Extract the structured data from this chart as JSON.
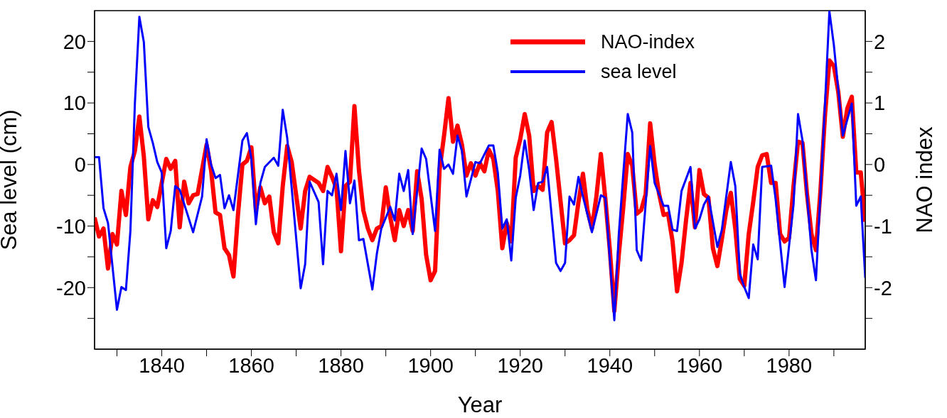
{
  "chart_data": {
    "type": "line",
    "xlabel": "Year",
    "ylabel": "Sea level (cm)",
    "y2label": "NAO index",
    "xlim": [
      1825,
      1997
    ],
    "xticks": [
      {
        "value": 1830,
        "label": null
      },
      1840,
      {
        "value": 1850,
        "label": null
      },
      1860,
      {
        "value": 1870,
        "label": null
      },
      1880,
      {
        "value": 1890,
        "label": null
      },
      1900,
      {
        "value": 1910,
        "label": null
      },
      1920,
      {
        "value": 1930,
        "label": null
      },
      1940,
      {
        "value": 1950,
        "label": null
      },
      1960,
      {
        "value": 1970,
        "label": null
      },
      1980,
      {
        "value": 1990,
        "label": null
      }
    ],
    "ylim": [
      -30,
      25
    ],
    "yticks": [
      {
        "value": -25,
        "label": null
      },
      -20,
      {
        "value": -15,
        "label": null
      },
      -10,
      {
        "value": -5,
        "label": null
      },
      0,
      {
        "value": 5,
        "label": null
      },
      10,
      {
        "value": 15,
        "label": null
      },
      20
    ],
    "y2lim": [
      -3,
      2.5
    ],
    "y2ticks": [
      {
        "value": -2.5,
        "label": null
      },
      -2,
      {
        "value": -1.5,
        "label": null
      },
      -1,
      {
        "value": -0.5,
        "label": null
      },
      0,
      {
        "value": 0.5,
        "label": null
      },
      1,
      {
        "value": 1.5,
        "label": null
      },
      2
    ],
    "grid": false,
    "legend": "top right",
    "marker": "none",
    "line_style": "solid",
    "series": [
      {
        "name": "NAO-index",
        "color": "#ff0000",
        "axis": "y2",
        "x": [
          1825,
          1826,
          1827,
          1828,
          1829,
          1830,
          1831,
          1832,
          1833,
          1834,
          1835,
          1836,
          1837,
          1838,
          1839,
          1841,
          1842,
          1843,
          1844,
          1845,
          1846,
          1847,
          1848,
          1850,
          1851,
          1852,
          1853,
          1854,
          1855,
          1856,
          1857,
          1858,
          1859,
          1860,
          1861,
          1862,
          1863,
          1864,
          1865,
          1866,
          1867,
          1868,
          1869,
          1871,
          1872,
          1873,
          1875,
          1876,
          1877,
          1878,
          1879,
          1880,
          1881,
          1882,
          1883,
          1884,
          1885,
          1886,
          1887,
          1888,
          1889,
          1890,
          1891,
          1892,
          1893,
          1894,
          1895,
          1896,
          1897,
          1898,
          1899,
          1900,
          1901,
          1902,
          1903,
          1904,
          1905,
          1906,
          1907,
          1908,
          1909,
          1910,
          1911,
          1912,
          1913,
          1914,
          1915,
          1916,
          1917,
          1918,
          1919,
          1920,
          1921,
          1922,
          1923,
          1924,
          1925,
          1926,
          1927,
          1928,
          1930,
          1931,
          1932,
          1933,
          1934,
          1935,
          1936,
          1937,
          1938,
          1939,
          1940,
          1941,
          1942,
          1943,
          1944,
          1945,
          1946,
          1947,
          1948,
          1949,
          1950,
          1951,
          1952,
          1953,
          1954,
          1955,
          1956,
          1957,
          1958,
          1959,
          1960,
          1961,
          1962,
          1963,
          1964,
          1965,
          1966,
          1967,
          1968,
          1969,
          1970,
          1971,
          1972,
          1973,
          1974,
          1975,
          1976,
          1977,
          1978,
          1979,
          1980,
          1981,
          1982,
          1983,
          1984,
          1985,
          1986,
          1987,
          1988,
          1989,
          1990,
          1991,
          1992,
          1993,
          1994,
          1995,
          1996,
          1997
        ],
        "values": [
          -0.86,
          -1.17,
          -1.04,
          -1.69,
          -1.13,
          -1.3,
          -0.43,
          -0.82,
          -0.04,
          0.22,
          0.78,
          0.13,
          -0.89,
          -0.58,
          -0.69,
          0.09,
          -0.07,
          0.06,
          -1.02,
          -0.28,
          -0.63,
          -0.5,
          -0.48,
          0.32,
          -0.09,
          -0.78,
          -0.82,
          -1.36,
          -1.47,
          -1.82,
          -0.82,
          0.0,
          0.06,
          0.28,
          -0.74,
          -0.37,
          -0.63,
          -0.52,
          -1.1,
          -1.28,
          -0.35,
          0.3,
          0.04,
          -1.04,
          -0.43,
          -0.2,
          -0.3,
          -0.43,
          -0.04,
          -0.2,
          -0.39,
          -1.41,
          -0.35,
          -0.28,
          0.95,
          -0.09,
          -0.75,
          -1.04,
          -1.23,
          -1.04,
          -1.0,
          -0.37,
          -0.86,
          -1.23,
          -0.74,
          -1.0,
          -0.74,
          -1.08,
          -0.11,
          -0.56,
          -1.47,
          -1.88,
          -1.73,
          -0.09,
          0.47,
          1.08,
          0.37,
          0.63,
          0.32,
          -0.18,
          0.02,
          -0.18,
          0.02,
          -0.11,
          0.24,
          0.09,
          -0.43,
          -1.36,
          -0.95,
          -1.25,
          0.11,
          0.41,
          0.82,
          0.47,
          -0.43,
          -0.35,
          -0.41,
          0.52,
          0.69,
          0.09,
          -1.28,
          -1.23,
          -1.15,
          -0.61,
          -0.15,
          -0.74,
          -1.04,
          -0.52,
          0.17,
          -0.56,
          -1.39,
          -2.38,
          -1.47,
          -0.69,
          0.17,
          -0.02,
          -0.8,
          -0.74,
          -0.48,
          0.67,
          0.0,
          -0.48,
          -0.82,
          -0.8,
          -1.25,
          -2.06,
          -1.6,
          -0.91,
          -0.3,
          -1.02,
          -0.09,
          -0.48,
          -0.54,
          -1.36,
          -1.65,
          -1.21,
          -0.74,
          -0.46,
          -1.04,
          -1.86,
          -1.97,
          -1.13,
          -0.61,
          -0.04,
          0.15,
          0.17,
          -0.3,
          -0.3,
          -1.13,
          -1.25,
          -1.19,
          -0.35,
          0.37,
          0.35,
          -0.48,
          -1.13,
          -1.39,
          -0.43,
          0.78,
          1.69,
          1.6,
          1.17,
          0.45,
          0.91,
          1.1,
          -0.13,
          -0.13,
          -0.93
        ]
      },
      {
        "name": "sea level",
        "color": "#0000ff",
        "x": [
          1825,
          1826,
          1827,
          1828,
          1830,
          1831,
          1832,
          1833,
          1834,
          1835,
          1836,
          1837,
          1838,
          1839,
          1840,
          1841,
          1842,
          1843,
          1844,
          1847,
          1849,
          1850,
          1851,
          1852,
          1853,
          1854,
          1855,
          1856,
          1858,
          1859,
          1860,
          1861,
          1862,
          1863,
          1865,
          1866,
          1867,
          1868,
          1871,
          1872,
          1873,
          1875,
          1876,
          1877,
          1878,
          1879,
          1880,
          1881,
          1882,
          1883,
          1884,
          1885,
          1887,
          1888,
          1889,
          1891,
          1892,
          1893,
          1894,
          1895,
          1896,
          1898,
          1899,
          1901,
          1902,
          1903,
          1904,
          1905,
          1906,
          1907,
          1908,
          1910,
          1911,
          1913,
          1914,
          1915,
          1916,
          1917,
          1918,
          1919,
          1920,
          1921,
          1922,
          1923,
          1924,
          1925,
          1926,
          1928,
          1929,
          1930,
          1931,
          1932,
          1933,
          1934,
          1936,
          1938,
          1939,
          1941,
          1942,
          1944,
          1945,
          1946,
          1947,
          1949,
          1950,
          1952,
          1953,
          1954,
          1955,
          1956,
          1958,
          1959,
          1960,
          1961,
          1962,
          1964,
          1965,
          1967,
          1968,
          1969,
          1970,
          1971,
          1972,
          1973,
          1974,
          1976,
          1977,
          1979,
          1981,
          1982,
          1983,
          1985,
          1986,
          1988,
          1989,
          1990,
          1992,
          1994,
          1995,
          1996,
          1997
        ],
        "values": [
          1.2,
          1.2,
          -7.1,
          -9.5,
          -23.6,
          -19.9,
          -20.4,
          -10.8,
          9.9,
          24.0,
          19.9,
          6.1,
          3.5,
          0.4,
          -1.3,
          -13.6,
          -10.8,
          -3.5,
          -4.1,
          -11.0,
          -5.2,
          4.1,
          0,
          -2.2,
          -1.7,
          -7.1,
          -5,
          -7.4,
          3.9,
          5.1,
          0.9,
          -9.7,
          -3.0,
          -0.4,
          1.1,
          -0.2,
          8.9,
          4.3,
          -20.1,
          -16.2,
          -2.8,
          -6.1,
          -16.2,
          -4.3,
          -5,
          -1.5,
          -7.4,
          2.2,
          -6.3,
          -2.6,
          -12.3,
          -12.1,
          -20.3,
          -14.5,
          -10.4,
          -6.9,
          -9.1,
          -1.5,
          -4.3,
          -0.9,
          -11.3,
          2.6,
          0.9,
          -10.8,
          2.4,
          -0.7,
          0,
          -1.5,
          4.7,
          2.2,
          -5.2,
          0.4,
          0.2,
          3.1,
          3.1,
          -1.3,
          -10.4,
          -8.9,
          -15.6,
          -5.4,
          -1.8,
          3.9,
          -0.9,
          -7.4,
          -3,
          -2.8,
          -0.4,
          -16,
          -17.3,
          -16,
          -5.2,
          -6.5,
          -2,
          -5.2,
          -11,
          -5,
          -5.4,
          -25.3,
          -11.3,
          8.2,
          5.2,
          -13.9,
          -15.6,
          3.0,
          -3,
          -6.7,
          -6.7,
          -10.6,
          -10.8,
          -4.3,
          -0.4,
          -10.4,
          -8.9,
          -6.5,
          -5.2,
          -13.4,
          -10.6,
          0.4,
          -3.5,
          -17.7,
          -19.9,
          -21.7,
          -13,
          -15.4,
          -0.4,
          -0.2,
          -5.6,
          -19.9,
          -6.5,
          8.2,
          3.9,
          -13.9,
          -18.8,
          9.5,
          24.9,
          19.4,
          4.7,
          9.9,
          -6.7,
          -5.2,
          -18.4
        ]
      }
    ]
  }
}
